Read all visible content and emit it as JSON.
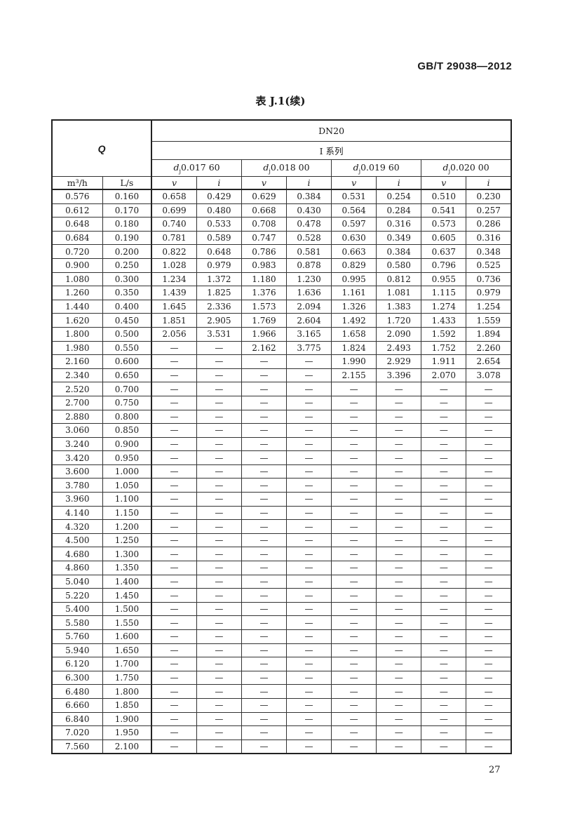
{
  "header": {
    "standard_number": "GB/T 29038—2012"
  },
  "table_title": "表 J.1(续)",
  "page_number": "27",
  "table": {
    "q_header": "Q",
    "dn_header": "DN20",
    "series_header": "I 系列",
    "diameter_groups": [
      {
        "prefix": "d",
        "sub": "j",
        "value": "0.017 60"
      },
      {
        "prefix": "d",
        "sub": "j",
        "value": "0.018 00"
      },
      {
        "prefix": "d",
        "sub": "j",
        "value": "0.019 60"
      },
      {
        "prefix": "d",
        "sub": "j",
        "value": "0.020 00"
      }
    ],
    "unit_headers": [
      "m³/h",
      "L/s"
    ],
    "sub_headers": [
      "v",
      "i",
      "v",
      "i",
      "v",
      "i",
      "v",
      "i"
    ],
    "rows": [
      [
        "0.576",
        "0.160",
        "0.658",
        "0.429",
        "0.629",
        "0.384",
        "0.531",
        "0.254",
        "0.510",
        "0.230"
      ],
      [
        "0.612",
        "0.170",
        "0.699",
        "0.480",
        "0.668",
        "0.430",
        "0.564",
        "0.284",
        "0.541",
        "0.257"
      ],
      [
        "0.648",
        "0.180",
        "0.740",
        "0.533",
        "0.708",
        "0.478",
        "0.597",
        "0.316",
        "0.573",
        "0.286"
      ],
      [
        "0.684",
        "0.190",
        "0.781",
        "0.589",
        "0.747",
        "0.528",
        "0.630",
        "0.349",
        "0.605",
        "0.316"
      ],
      [
        "0.720",
        "0.200",
        "0.822",
        "0.648",
        "0.786",
        "0.581",
        "0.663",
        "0.384",
        "0.637",
        "0.348"
      ],
      [
        "0.900",
        "0.250",
        "1.028",
        "0.979",
        "0.983",
        "0.878",
        "0.829",
        "0.580",
        "0.796",
        "0.525"
      ],
      [
        "1.080",
        "0.300",
        "1.234",
        "1.372",
        "1.180",
        "1.230",
        "0.995",
        "0.812",
        "0.955",
        "0.736"
      ],
      [
        "1.260",
        "0.350",
        "1.439",
        "1.825",
        "1.376",
        "1.636",
        "1.161",
        "1.081",
        "1.115",
        "0.979"
      ],
      [
        "1.440",
        "0.400",
        "1.645",
        "2.336",
        "1.573",
        "2.094",
        "1.326",
        "1.383",
        "1.274",
        "1.254"
      ],
      [
        "1.620",
        "0.450",
        "1.851",
        "2.905",
        "1.769",
        "2.604",
        "1.492",
        "1.720",
        "1.433",
        "1.559"
      ],
      [
        "1.800",
        "0.500",
        "2.056",
        "3.531",
        "1.966",
        "3.165",
        "1.658",
        "2.090",
        "1.592",
        "1.894"
      ],
      [
        "1.980",
        "0.550",
        "—",
        "—",
        "2.162",
        "3.775",
        "1.824",
        "2.493",
        "1.752",
        "2.260"
      ],
      [
        "2.160",
        "0.600",
        "—",
        "—",
        "—",
        "—",
        "1.990",
        "2.929",
        "1.911",
        "2.654"
      ],
      [
        "2.340",
        "0.650",
        "—",
        "—",
        "—",
        "—",
        "2.155",
        "3.396",
        "2.070",
        "3.078"
      ],
      [
        "2.520",
        "0.700",
        "—",
        "—",
        "—",
        "—",
        "—",
        "—",
        "—",
        "—"
      ],
      [
        "2.700",
        "0.750",
        "—",
        "—",
        "—",
        "—",
        "—",
        "—",
        "—",
        "—"
      ],
      [
        "2.880",
        "0.800",
        "—",
        "—",
        "—",
        "—",
        "—",
        "—",
        "—",
        "—"
      ],
      [
        "3.060",
        "0.850",
        "—",
        "—",
        "—",
        "—",
        "—",
        "—",
        "—",
        "—"
      ],
      [
        "3.240",
        "0.900",
        "—",
        "—",
        "—",
        "—",
        "—",
        "—",
        "—",
        "—"
      ],
      [
        "3.420",
        "0.950",
        "—",
        "—",
        "—",
        "—",
        "—",
        "—",
        "—",
        "—"
      ],
      [
        "3.600",
        "1.000",
        "—",
        "—",
        "—",
        "—",
        "—",
        "—",
        "—",
        "—"
      ],
      [
        "3.780",
        "1.050",
        "—",
        "—",
        "—",
        "—",
        "—",
        "—",
        "—",
        "—"
      ],
      [
        "3.960",
        "1.100",
        "—",
        "—",
        "—",
        "—",
        "—",
        "—",
        "—",
        "—"
      ],
      [
        "4.140",
        "1.150",
        "—",
        "—",
        "—",
        "—",
        "—",
        "—",
        "—",
        "—"
      ],
      [
        "4.320",
        "1.200",
        "—",
        "—",
        "—",
        "—",
        "—",
        "—",
        "—",
        "—"
      ],
      [
        "4.500",
        "1.250",
        "—",
        "—",
        "—",
        "—",
        "—",
        "—",
        "—",
        "—"
      ],
      [
        "4.680",
        "1.300",
        "—",
        "—",
        "—",
        "—",
        "—",
        "—",
        "—",
        "—"
      ],
      [
        "4.860",
        "1.350",
        "—",
        "—",
        "—",
        "—",
        "—",
        "—",
        "—",
        "—"
      ],
      [
        "5.040",
        "1.400",
        "—",
        "—",
        "—",
        "—",
        "—",
        "—",
        "—",
        "—"
      ],
      [
        "5.220",
        "1.450",
        "—",
        "—",
        "—",
        "—",
        "—",
        "—",
        "—",
        "—"
      ],
      [
        "5.400",
        "1.500",
        "—",
        "—",
        "—",
        "—",
        "—",
        "—",
        "—",
        "—"
      ],
      [
        "5.580",
        "1.550",
        "—",
        "—",
        "—",
        "—",
        "—",
        "—",
        "—",
        "—"
      ],
      [
        "5.760",
        "1.600",
        "—",
        "—",
        "—",
        "—",
        "—",
        "—",
        "—",
        "—"
      ],
      [
        "5.940",
        "1.650",
        "—",
        "—",
        "—",
        "—",
        "—",
        "—",
        "—",
        "—"
      ],
      [
        "6.120",
        "1.700",
        "—",
        "—",
        "—",
        "—",
        "—",
        "—",
        "—",
        "—"
      ],
      [
        "6.300",
        "1.750",
        "—",
        "—",
        "—",
        "—",
        "—",
        "—",
        "—",
        "—"
      ],
      [
        "6.480",
        "1.800",
        "—",
        "—",
        "—",
        "—",
        "—",
        "—",
        "—",
        "—"
      ],
      [
        "6.660",
        "1.850",
        "—",
        "—",
        "—",
        "—",
        "—",
        "—",
        "—",
        "—"
      ],
      [
        "6.840",
        "1.900",
        "—",
        "—",
        "—",
        "—",
        "—",
        "—",
        "—",
        "—"
      ],
      [
        "7.020",
        "1.950",
        "—",
        "—",
        "—",
        "—",
        "—",
        "—",
        "—",
        "—"
      ],
      [
        "7.560",
        "2.100",
        "—",
        "—",
        "—",
        "—",
        "—",
        "—",
        "—",
        "—"
      ]
    ]
  }
}
